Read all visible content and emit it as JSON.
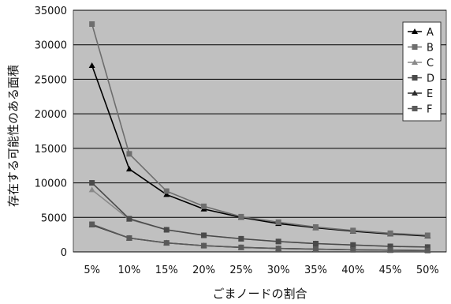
{
  "chart_data": {
    "type": "line",
    "title": "",
    "xlabel": "ごまノードの割合",
    "ylabel": "存在する可能性のある面積",
    "categories": [
      "5%",
      "10%",
      "15%",
      "20%",
      "25%",
      "30%",
      "35%",
      "40%",
      "45%",
      "50%"
    ],
    "ylim": [
      0,
      35000
    ],
    "yticks": [
      "0",
      "5000",
      "10000",
      "15000",
      "20000",
      "25000",
      "30000",
      "35000"
    ],
    "ytick_values": [
      0,
      5000,
      10000,
      15000,
      20000,
      25000,
      30000,
      35000
    ],
    "grid": true,
    "legend_position": "top-right",
    "plot_background": "#c0c0c0",
    "series": [
      {
        "name": "A",
        "marker": "triangle",
        "color": "#000000",
        "values": [
          27000,
          12000,
          8300,
          6200,
          5000,
          4100,
          3500,
          3000,
          2600,
          2300
        ]
      },
      {
        "name": "B",
        "marker": "square",
        "color": "#6e6e6e",
        "values": [
          33000,
          14200,
          8800,
          6600,
          5100,
          4300,
          3600,
          3100,
          2700,
          2400
        ]
      },
      {
        "name": "C",
        "marker": "triangle",
        "color": "#8a8a8a",
        "values": [
          9000,
          4700,
          3200,
          2400,
          1900,
          1500,
          1200,
          1000,
          800,
          700
        ]
      },
      {
        "name": "D",
        "marker": "square",
        "color": "#4a4a4a",
        "values": [
          10000,
          4800,
          3200,
          2400,
          1900,
          1500,
          1200,
          1000,
          800,
          700
        ]
      },
      {
        "name": "E",
        "marker": "triangle",
        "color": "#2a2a2a",
        "values": [
          3900,
          2000,
          1300,
          900,
          650,
          500,
          400,
          300,
          250,
          200
        ]
      },
      {
        "name": "F",
        "marker": "square",
        "color": "#5a5a5a",
        "values": [
          4000,
          2000,
          1300,
          900,
          650,
          500,
          400,
          300,
          250,
          200
        ]
      }
    ]
  }
}
